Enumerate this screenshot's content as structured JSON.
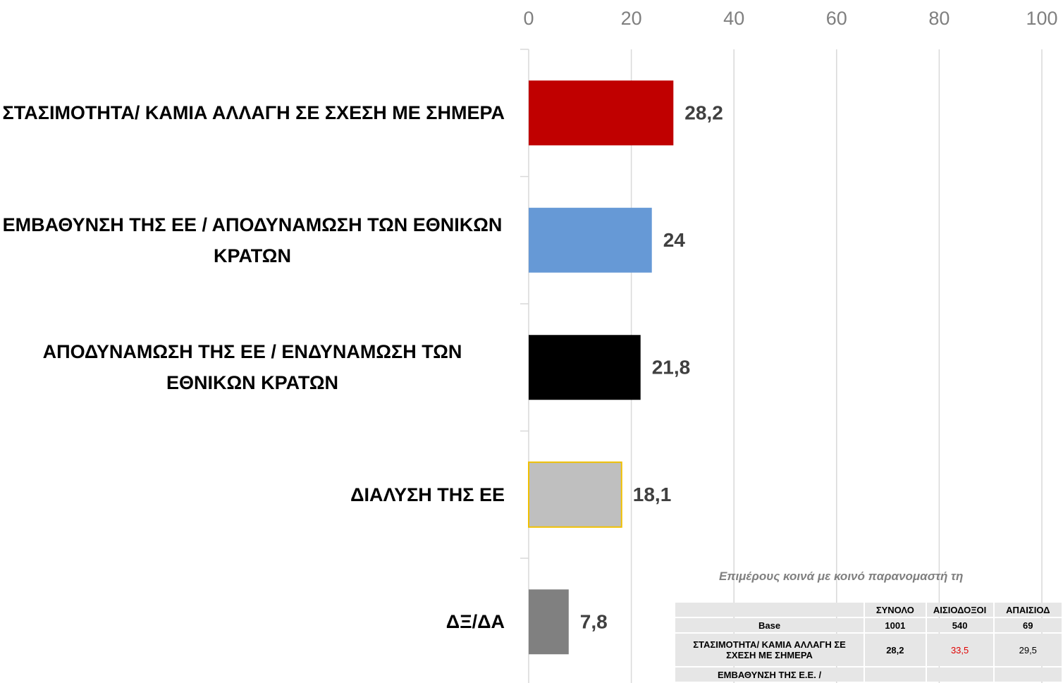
{
  "chart_data": {
    "type": "barh",
    "categories": [
      "ΣΤΑΣΙΜΟΤΗΤΑ/ ΚΑΜΙΑ ΑΛΛΑΓΗ ΣΕ ΣΧΕΣΗ ΜΕ ΣΗΜΕΡΑ",
      "ΕΜΒΑΘΥΝΣΗ ΤΗΣ ΕΕ / ΑΠΟΔΥΝΑΜΩΣΗ ΤΩΝ ΕΘΝΙΚΩΝ ΚΡΑΤΩΝ",
      "ΑΠΟΔΥΝΑΜΩΣΗ ΤΗΣ ΕΕ / ΕΝΔΥΝΑΜΩΣΗ ΤΩΝ ΕΘΝΙΚΩΝ ΚΡΑΤΩΝ",
      "ΔΙΑΛΥΣΗ ΤΗΣ ΕΕ",
      "ΔΞ/ΔΑ"
    ],
    "values": [
      28.2,
      24,
      21.8,
      18.1,
      7.8
    ],
    "value_labels": [
      "28,2",
      "24",
      "21,8",
      "18,1",
      "7,8"
    ],
    "colors": [
      "#c00000",
      "#6699d6",
      "#000000",
      "#bfbfbf",
      "#808080"
    ],
    "edgecolors": [
      null,
      null,
      null,
      "#f0c000",
      null
    ],
    "xlim": [
      0,
      100
    ],
    "xticks": [
      0,
      20,
      40,
      60,
      80,
      100
    ],
    "grid": true
  },
  "table": {
    "caption": "Επιμέρους κοινά με κοινό παρανομαστή τη",
    "header": [
      "ΣΥΝΟΛΟ",
      "ΑΙΣΙΟΔΟΞΟΙ",
      "ΑΠΑΙΣΙΟΔ"
    ],
    "rows": [
      [
        "Base",
        "1001",
        "540",
        "69"
      ],
      [
        "ΣΤΑΣΙΜΟΤΗΤΑ/ ΚΑΜΙΑ ΑΛΛΑΓΗ ΣΕ ΣΧΕΣΗ ΜΕ ΣΗΜΕΡΑ",
        "28,2",
        "33,5",
        "29,5"
      ],
      [
        "ΕΜΒΑΘΥΝΣΗ ΤΗΣ Ε.Ε. /",
        "",
        "",
        ""
      ]
    ],
    "highlight": {
      "row": 1,
      "col": 2,
      "color": "#e00000"
    }
  }
}
